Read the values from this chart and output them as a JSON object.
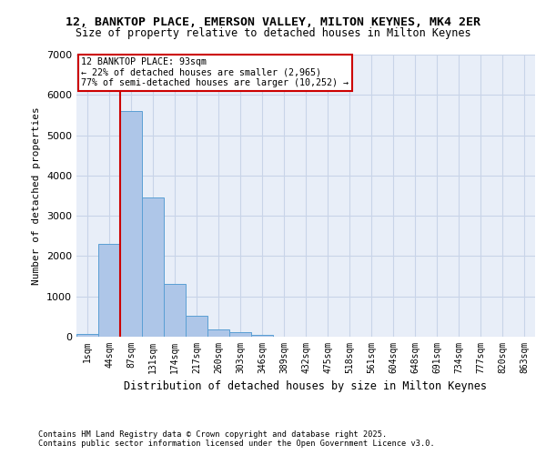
{
  "title_line1": "12, BANKTOP PLACE, EMERSON VALLEY, MILTON KEYNES, MK4 2ER",
  "title_line2": "Size of property relative to detached houses in Milton Keynes",
  "xlabel": "Distribution of detached houses by size in Milton Keynes",
  "ylabel": "Number of detached properties",
  "bin_labels": [
    "1sqm",
    "44sqm",
    "87sqm",
    "131sqm",
    "174sqm",
    "217sqm",
    "260sqm",
    "303sqm",
    "346sqm",
    "389sqm",
    "432sqm",
    "475sqm",
    "518sqm",
    "561sqm",
    "604sqm",
    "648sqm",
    "691sqm",
    "734sqm",
    "777sqm",
    "820sqm",
    "863sqm"
  ],
  "bar_heights": [
    75,
    2300,
    5600,
    3450,
    1320,
    510,
    190,
    105,
    50,
    0,
    0,
    0,
    0,
    0,
    0,
    0,
    0,
    0,
    0,
    0,
    0
  ],
  "bar_color": "#aec6e8",
  "bar_edgecolor": "#5a9fd4",
  "vline_color": "#cc0000",
  "annotation_title": "12 BANKTOP PLACE: 93sqm",
  "annotation_line2": "← 22% of detached houses are smaller (2,965)",
  "annotation_line3": "77% of semi-detached houses are larger (10,252) →",
  "annotation_box_color": "#cc0000",
  "ylim": [
    0,
    7000
  ],
  "yticks": [
    0,
    1000,
    2000,
    3000,
    4000,
    5000,
    6000,
    7000
  ],
  "grid_color": "#c8d4e8",
  "bg_color": "#e8eef8",
  "footer_line1": "Contains HM Land Registry data © Crown copyright and database right 2025.",
  "footer_line2": "Contains public sector information licensed under the Open Government Licence v3.0."
}
